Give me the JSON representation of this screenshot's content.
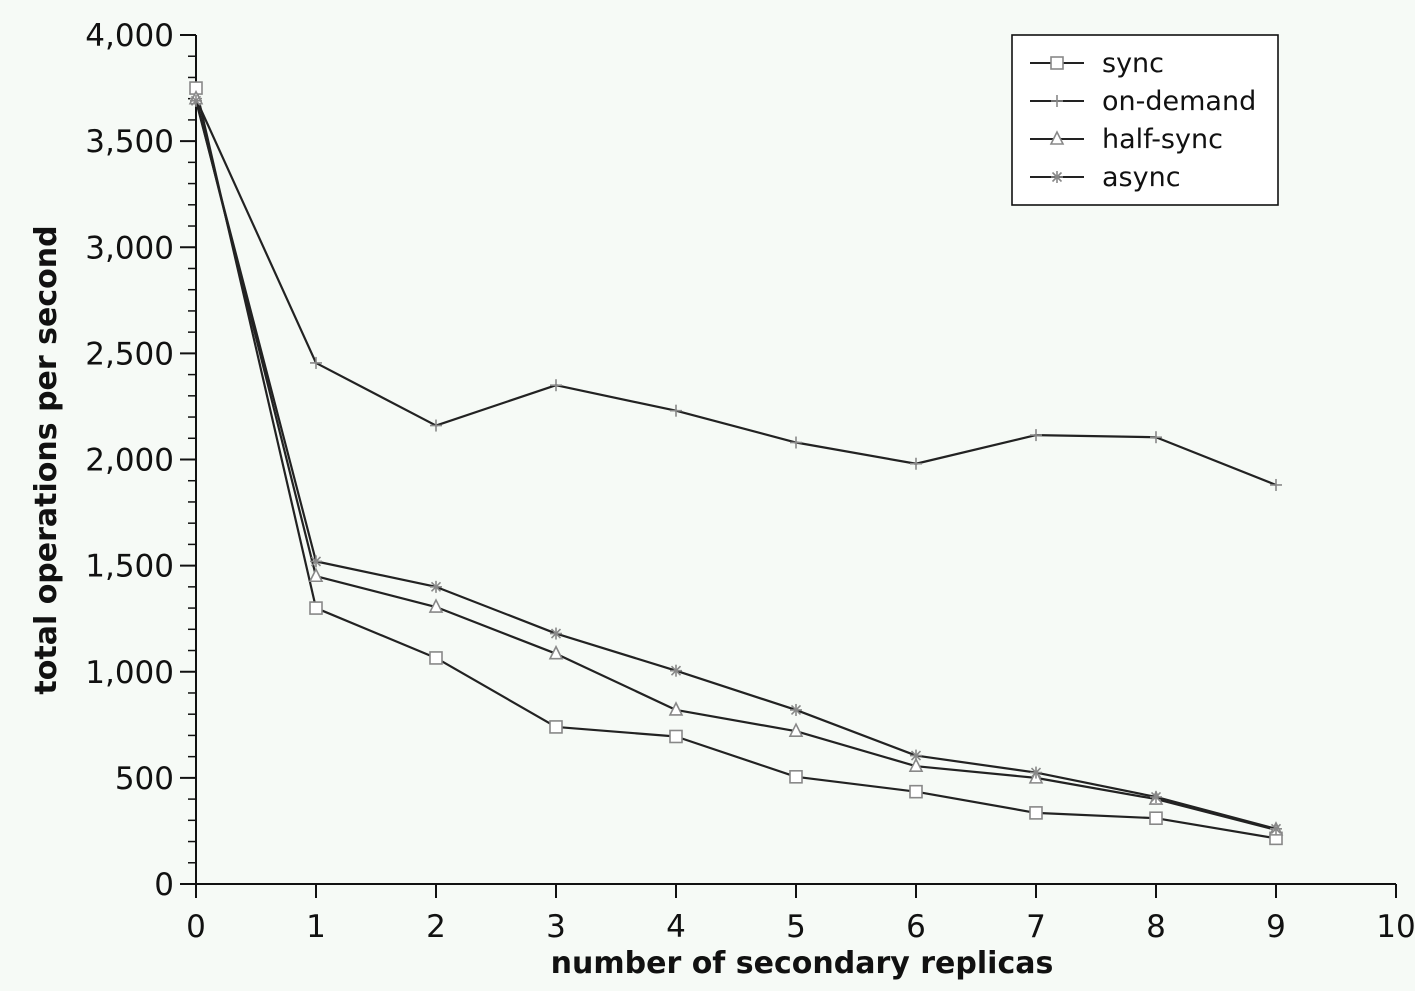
{
  "chart_data": {
    "type": "line",
    "title": "",
    "xlabel": "number of secondary replicas",
    "ylabel": "total operations per second",
    "xlim": [
      0,
      10
    ],
    "ylim": [
      0,
      4000
    ],
    "x_ticks": [
      0,
      1,
      2,
      3,
      4,
      5,
      6,
      7,
      8,
      9,
      10
    ],
    "x_tick_labels": [
      "0",
      "1",
      "2",
      "3",
      "4",
      "5",
      "6",
      "7",
      "8",
      "9",
      "10"
    ],
    "y_ticks": [
      0,
      500,
      1000,
      1500,
      2000,
      2500,
      3000,
      3500,
      4000
    ],
    "y_tick_labels": [
      "0",
      "500",
      "1,000",
      "1,500",
      "2,000",
      "2,500",
      "3,000",
      "3,500",
      "4,000"
    ],
    "y_minor_step": 100,
    "grid": false,
    "legend_position": "top-right",
    "line_color": "#222222",
    "marker_color": "#888888",
    "x": [
      0,
      1,
      2,
      3,
      4,
      5,
      6,
      7,
      8,
      9
    ],
    "series": [
      {
        "name": "sync",
        "marker": "square",
        "values": [
          3750,
          1300,
          1065,
          740,
          695,
          505,
          435,
          335,
          310,
          215
        ]
      },
      {
        "name": "on-demand",
        "marker": "plus",
        "values": [
          3700,
          2455,
          2160,
          2350,
          2230,
          2080,
          1980,
          2115,
          2105,
          1880
        ]
      },
      {
        "name": "half-sync",
        "marker": "triangle",
        "values": [
          3700,
          1450,
          1305,
          1085,
          820,
          720,
          555,
          500,
          400,
          255
        ]
      },
      {
        "name": "async",
        "marker": "asterisk",
        "values": [
          3690,
          1520,
          1400,
          1180,
          1005,
          820,
          605,
          525,
          410,
          260
        ]
      }
    ]
  }
}
